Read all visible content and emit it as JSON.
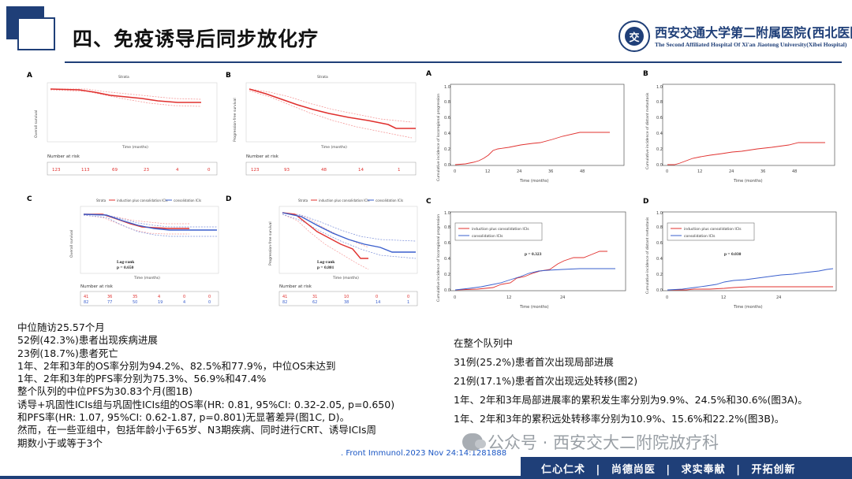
{
  "header": {
    "title": "四、免疫诱导后同步放化疗",
    "hospital_name_cn": "西安交通大学第二附属医院(西北医院)",
    "hospital_name_en": "The Second Affiliated Hospital Of Xi'an Jiaotong University(Xibei Hospital)",
    "logo_glyph": "交"
  },
  "figure_left": {
    "panels": [
      {
        "letter": "A",
        "ylabel": "Overall survival",
        "xlabel": "Time (months)",
        "strata": "Strata",
        "risk_title": "Number at risk",
        "risk_values": [
          "123",
          "113",
          "69",
          "23",
          "4",
          "0"
        ]
      },
      {
        "letter": "B",
        "ylabel": "Progression-free survival",
        "xlabel": "Time (months)",
        "strata": "Strata",
        "risk_title": "Number at risk",
        "risk_values": [
          "123",
          "93",
          "48",
          "14",
          "1"
        ]
      },
      {
        "letter": "C",
        "ylabel": "Overall survival",
        "xlabel": "Time (months)",
        "strata": "Strata",
        "legend": [
          "induction plus consolidation ICIs",
          "consolidation ICIs"
        ],
        "stat": [
          "Log-rank",
          "p = 0.650"
        ],
        "risk_title": "Number at risk",
        "risk_values_1": [
          "41",
          "36",
          "35",
          "4",
          "0",
          "0"
        ],
        "risk_values_2": [
          "82",
          "77",
          "50",
          "19",
          "4",
          "0"
        ]
      },
      {
        "letter": "D",
        "ylabel": "Progression-free survival",
        "xlabel": "Time (months)",
        "strata": "Strata",
        "legend": [
          "induction plus consolidation ICIs",
          "consolidation ICIs"
        ],
        "stat": [
          "Log-rank",
          "p = 0.801"
        ],
        "risk_title": "Number at risk",
        "risk_values_1": [
          "41",
          "31",
          "10",
          "0",
          "0"
        ],
        "risk_values_2": [
          "82",
          "62",
          "38",
          "14",
          "1"
        ]
      }
    ]
  },
  "figure_right": {
    "panels": [
      {
        "letter": "A",
        "ylabel": "Cumulative incidence of locoregional progression",
        "xlabel": "Time (months)",
        "xticks": [
          "0",
          "12",
          "24",
          "36",
          "48"
        ],
        "yticks": [
          "0.0",
          "0.2",
          "0.4",
          "0.6",
          "0.8",
          "1.0"
        ]
      },
      {
        "letter": "B",
        "ylabel": "Cumulative incidence of distant metastasis",
        "xlabel": "Time (months)",
        "xticks": [
          "0",
          "12",
          "24",
          "36",
          "48"
        ],
        "yticks": [
          "0.0",
          "0.2",
          "0.4",
          "0.6",
          "0.8",
          "1.0"
        ]
      },
      {
        "letter": "C",
        "ylabel": "Cumulative incidence of locoregional progression",
        "xlabel": "Time (months)",
        "xticks": [
          "0",
          "12",
          "24"
        ],
        "yticks": [
          "0.0",
          "0.2",
          "0.4",
          "0.6",
          "0.8",
          "1.0"
        ],
        "legend": [
          "induction plus consolidation ICIs",
          "consolidation ICIs"
        ],
        "stat": "p = 0.323"
      },
      {
        "letter": "D",
        "ylabel": "Cumulative incidence of distant metastasis",
        "xlabel": "Time (months)",
        "xticks": [
          "0",
          "12",
          "24"
        ],
        "yticks": [
          "0.0",
          "0.2",
          "0.4",
          "0.6",
          "0.8",
          "1.0"
        ],
        "legend": [
          "induction plus consolidation ICIs",
          "consolidation ICIs"
        ],
        "stat": "p = 0.030"
      }
    ]
  },
  "text_left": [
    "中位随访25.57个月",
    "52例(42.3%)患者出现疾病进展",
    "23例(18.7%)患者死亡",
    "1年、2年和3年的OS率分别为94.2%、82.5%和77.9%，中位OS未达到",
    "1年、2年和3年的PFS率分别为75.3%、56.9%和47.4%",
    "整个队列的中位PFS为30.83个月(图1B)",
    "诱导+巩固性ICIs组与巩固性ICIs组的OS率(HR: 0.81, 95%CI: 0.32-2.05, p=0.650)",
    "和PFS率(HR: 1.07, 95%CI: 0.62-1.87, p=0.801)无显著差异(图1C, D)。",
    "然而，在一些亚组中，包括年龄小于65岁、N3期疾病、同时进行CRT、诱导ICIs周",
    "期数小于或等于3个"
  ],
  "text_right": [
    "在整个队列中",
    "31例(25.2%)患者首次出现局部进展",
    "21例(17.1%)患者首次出现远处转移(图2)",
    "1年、2年和3年局部进展率的累积发生率分别为9.9%、24.5%和30.6%(图3A)。",
    "1年、2年和3年的累积远处转移率分别为10.9%、15.6%和22.2%(图3B)。"
  ],
  "citation": ". Front Immunol.2023 Nov 24:14:1281888",
  "watermark": "公众号 · 西安交大二附院放疗科",
  "footer": {
    "mottos": [
      "仁心仁术",
      "尚德尚医",
      "求实奉献",
      "开拓创新"
    ]
  },
  "colors": {
    "brand_navy": "#1f3f78",
    "curve_red": "#e0302e",
    "curve_blue": "#3a5fcd"
  }
}
